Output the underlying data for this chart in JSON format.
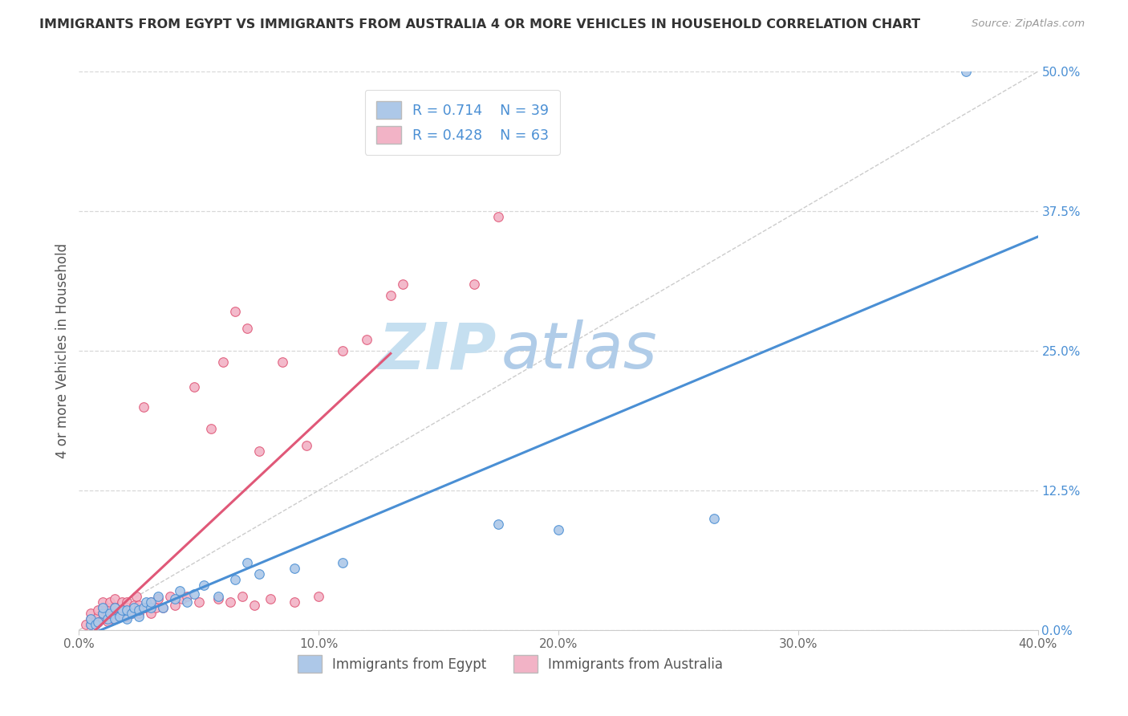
{
  "title": "IMMIGRANTS FROM EGYPT VS IMMIGRANTS FROM AUSTRALIA 4 OR MORE VEHICLES IN HOUSEHOLD CORRELATION CHART",
  "source": "Source: ZipAtlas.com",
  "ylabel": "4 or more Vehicles in Household",
  "legend_label1": "Immigrants from Egypt",
  "legend_label2": "Immigrants from Australia",
  "r1": 0.714,
  "n1": 39,
  "r2": 0.428,
  "n2": 63,
  "color_egypt": "#adc8e8",
  "color_australia": "#f2b3c6",
  "line_color_egypt": "#4a8fd4",
  "line_color_australia": "#e05878",
  "ref_line_color": "#cccccc",
  "xlim": [
    0.0,
    0.4
  ],
  "ylim": [
    0.0,
    0.5
  ],
  "xticks": [
    0.0,
    0.1,
    0.2,
    0.3,
    0.4
  ],
  "yticks": [
    0.0,
    0.125,
    0.25,
    0.375,
    0.5
  ],
  "xtick_labels": [
    "0.0%",
    "10.0%",
    "20.0%",
    "30.0%",
    "40.0%"
  ],
  "ytick_labels": [
    "0.0%",
    "12.5%",
    "25.0%",
    "37.5%",
    "50.0%"
  ],
  "background_color": "#ffffff",
  "egypt_x": [
    0.005,
    0.005,
    0.007,
    0.008,
    0.01,
    0.01,
    0.012,
    0.013,
    0.015,
    0.015,
    0.017,
    0.018,
    0.02,
    0.02,
    0.022,
    0.023,
    0.025,
    0.025,
    0.027,
    0.028,
    0.03,
    0.03,
    0.033,
    0.035,
    0.04,
    0.042,
    0.045,
    0.048,
    0.052,
    0.058,
    0.065,
    0.07,
    0.075,
    0.09,
    0.11,
    0.175,
    0.2,
    0.265,
    0.37
  ],
  "egypt_y": [
    0.005,
    0.01,
    0.005,
    0.007,
    0.015,
    0.02,
    0.01,
    0.015,
    0.01,
    0.02,
    0.012,
    0.018,
    0.01,
    0.018,
    0.015,
    0.02,
    0.012,
    0.018,
    0.02,
    0.025,
    0.02,
    0.025,
    0.03,
    0.02,
    0.028,
    0.035,
    0.025,
    0.032,
    0.04,
    0.03,
    0.045,
    0.06,
    0.05,
    0.055,
    0.06,
    0.095,
    0.09,
    0.1,
    0.5
  ],
  "australia_x": [
    0.003,
    0.005,
    0.005,
    0.005,
    0.007,
    0.008,
    0.008,
    0.01,
    0.01,
    0.01,
    0.01,
    0.012,
    0.012,
    0.013,
    0.013,
    0.015,
    0.015,
    0.015,
    0.015,
    0.017,
    0.018,
    0.018,
    0.02,
    0.02,
    0.02,
    0.022,
    0.023,
    0.024,
    0.025,
    0.025,
    0.027,
    0.028,
    0.03,
    0.03,
    0.032,
    0.033,
    0.035,
    0.038,
    0.04,
    0.043,
    0.045,
    0.048,
    0.05,
    0.055,
    0.058,
    0.06,
    0.063,
    0.065,
    0.068,
    0.07,
    0.073,
    0.075,
    0.08,
    0.085,
    0.09,
    0.095,
    0.1,
    0.11,
    0.12,
    0.13,
    0.135,
    0.165,
    0.175
  ],
  "australia_y": [
    0.005,
    0.005,
    0.01,
    0.015,
    0.008,
    0.012,
    0.018,
    0.01,
    0.015,
    0.02,
    0.025,
    0.008,
    0.015,
    0.02,
    0.025,
    0.01,
    0.015,
    0.02,
    0.028,
    0.012,
    0.018,
    0.025,
    0.012,
    0.02,
    0.025,
    0.015,
    0.022,
    0.03,
    0.015,
    0.022,
    0.2,
    0.02,
    0.015,
    0.025,
    0.02,
    0.028,
    0.02,
    0.03,
    0.022,
    0.028,
    0.03,
    0.218,
    0.025,
    0.18,
    0.028,
    0.24,
    0.025,
    0.285,
    0.03,
    0.27,
    0.022,
    0.16,
    0.028,
    0.24,
    0.025,
    0.165,
    0.03,
    0.25,
    0.26,
    0.3,
    0.31,
    0.31,
    0.37
  ],
  "watermark_zip": "ZIP",
  "watermark_atlas": "atlas",
  "watermark_zip_color": "#c5dff0",
  "watermark_atlas_color": "#b0cce8"
}
